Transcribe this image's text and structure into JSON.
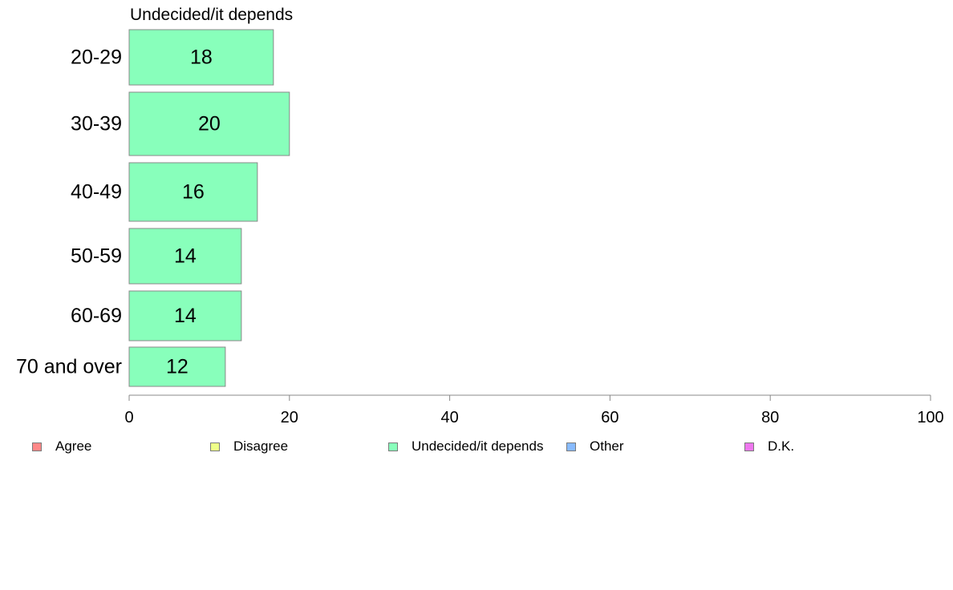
{
  "chart_data": {
    "type": "bar",
    "orientation": "horizontal",
    "title": "Undecided/it depends",
    "categories": [
      "20-29",
      "30-39",
      "40-49",
      "50-59",
      "60-69",
      "70 and over"
    ],
    "series": [
      {
        "name": "Undecided/it depends",
        "values": [
          18,
          20,
          16,
          14,
          14,
          12
        ]
      }
    ],
    "bar_labels": [
      "18",
      "20",
      "16",
      "14",
      "14",
      "12"
    ],
    "xlim": [
      0,
      100
    ],
    "xticks": [
      0,
      20,
      40,
      60,
      80,
      100
    ],
    "bar_color": "#88ffbb",
    "bar_border_color": "#888888",
    "grid": false,
    "legend_position": "bottom",
    "legend": [
      {
        "label": "Agree",
        "color": "#ff8888"
      },
      {
        "label": "Disagree",
        "color": "#eeff88"
      },
      {
        "label": "Undecided/it depends",
        "color": "#88ffbb"
      },
      {
        "label": "Other",
        "color": "#88bbff"
      },
      {
        "label": "D.K.",
        "color": "#ee77ee"
      }
    ]
  }
}
